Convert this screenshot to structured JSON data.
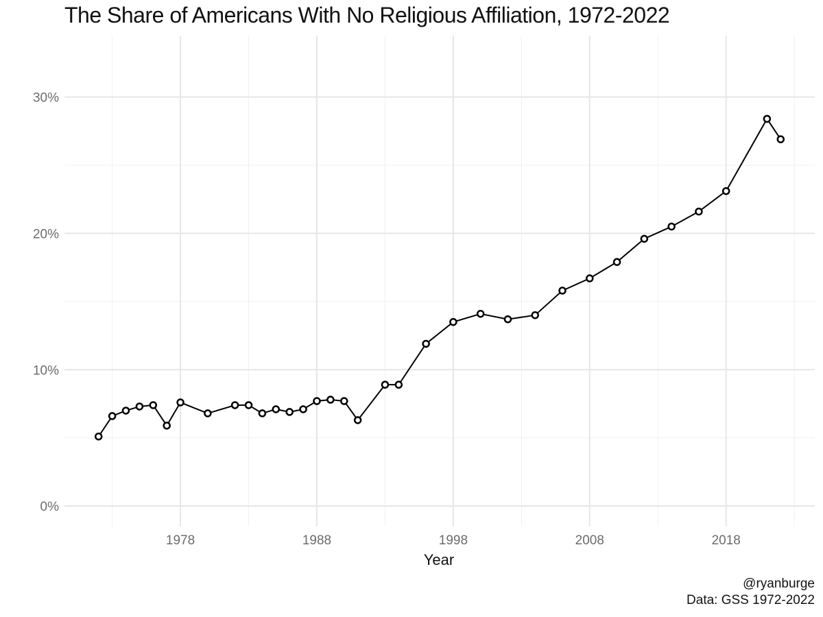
{
  "chart_data": {
    "type": "line",
    "title": "The Share of Americans With No Religious Affiliation, 1972-2022",
    "xlabel": "Year",
    "ylabel": "",
    "xlim": [
      1969.5,
      2024.5
    ],
    "ylim": [
      -1.5,
      34.5
    ],
    "x_ticks": [
      1978,
      1988,
      1998,
      2008,
      2018
    ],
    "x_minor_ticks": [
      1973,
      1983,
      1993,
      2003,
      2013,
      2023
    ],
    "y_ticks": [
      0,
      10,
      20,
      30
    ],
    "y_tick_labels": [
      "0%",
      "10%",
      "20%",
      "30%"
    ],
    "y_minor_ticks": [
      5,
      15,
      25
    ],
    "grid": true,
    "legend": "none",
    "line_color": "#000000",
    "marker_fill": "#ffffff",
    "marker_stroke": "#000000",
    "series": [
      {
        "x": [
          1972,
          1973,
          1974,
          1975,
          1976,
          1977,
          1978,
          1980,
          1982,
          1983,
          1984,
          1985,
          1986,
          1987,
          1988,
          1989,
          1990,
          1991,
          1993,
          1994,
          1996,
          1998,
          2000,
          2002,
          2004,
          2006,
          2008,
          2010,
          2012,
          2014,
          2016,
          2018,
          2021,
          2022
        ],
        "values": [
          5.1,
          6.6,
          7.0,
          7.3,
          7.4,
          5.9,
          7.6,
          6.8,
          7.4,
          7.4,
          6.8,
          7.1,
          6.9,
          7.1,
          7.7,
          7.8,
          7.7,
          6.3,
          8.9,
          8.9,
          11.9,
          13.5,
          14.1,
          13.7,
          14.0,
          15.8,
          16.7,
          17.9,
          19.6,
          20.5,
          21.6,
          23.1,
          28.4,
          26.9
        ]
      }
    ]
  },
  "caption": {
    "line1": "@ryanburge",
    "line2": "Data: GSS 1972-2022"
  }
}
